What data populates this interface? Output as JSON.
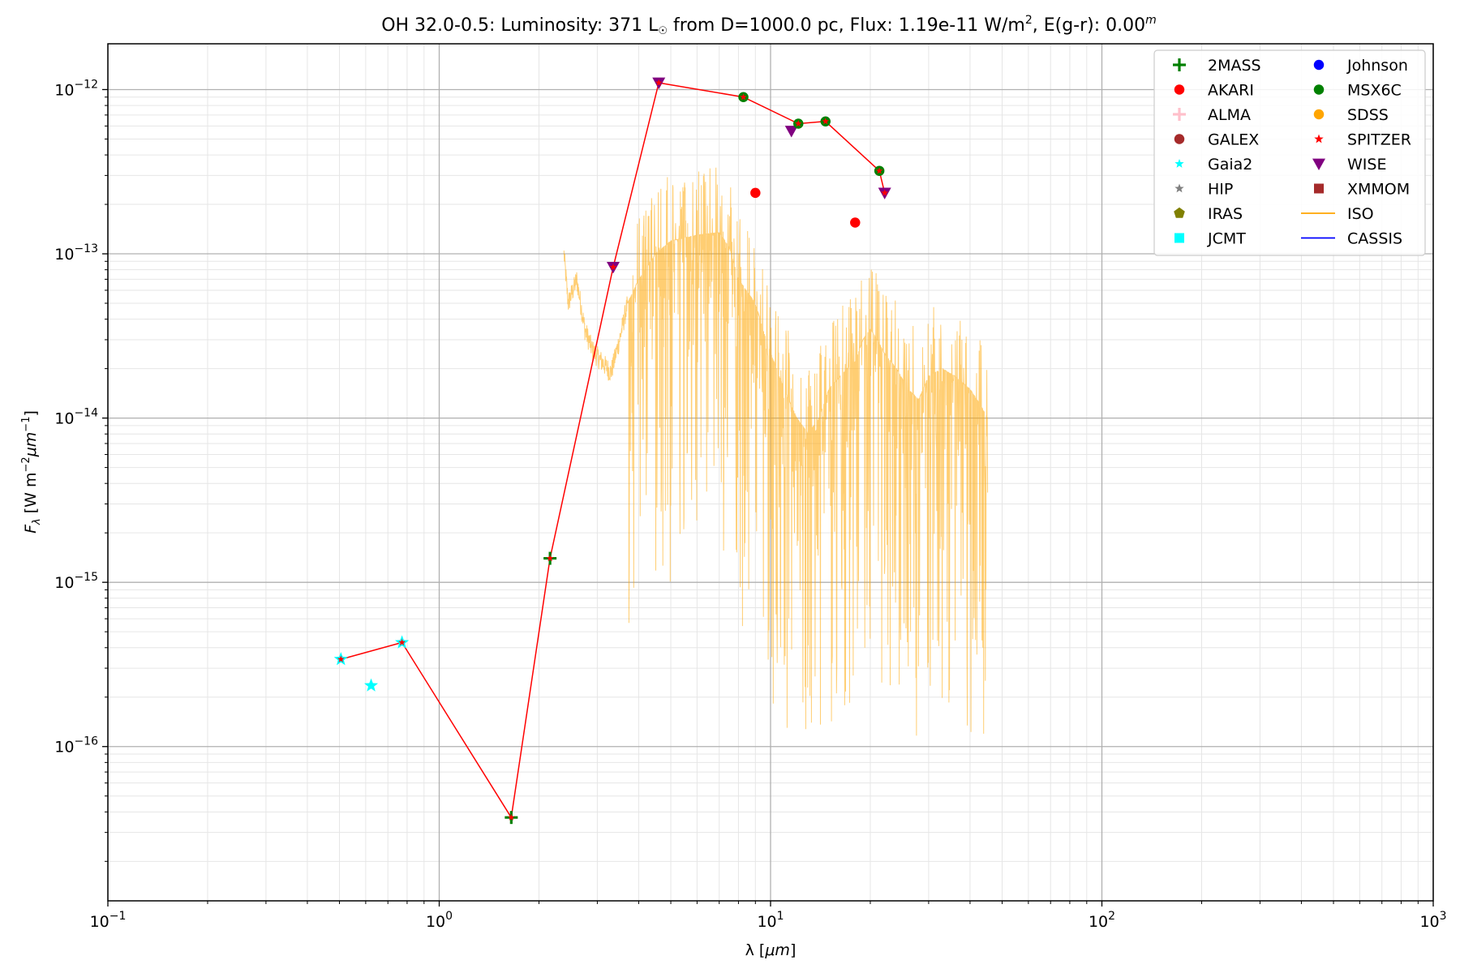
{
  "chart_data": {
    "type": "scatter",
    "title": {
      "prefix": "OH 32.0-0.5:  Luminosity: 371 L",
      "sun_symbol": "☉",
      "middle": " from D=1000.0 pc, Flux: 1.19e-11 W/m",
      "sup1": "2",
      "after_sup1": ", E(g-r): 0.00",
      "sup2": "m"
    },
    "xlabel": {
      "main": "λ [",
      "italic": "μm",
      "end": "]"
    },
    "ylabel": {
      "main": "F",
      "sub": "λ",
      "mid": " [W m",
      "sup1": "−2",
      "italic": "μm",
      "sup2": "−1",
      "end": "]"
    },
    "x_scale": "log",
    "y_scale": "log",
    "xlim": [
      0.1,
      1000
    ],
    "ylim": [
      1.15e-17,
      1.9e-12
    ],
    "x_ticks": [
      {
        "value": 0.1,
        "base": "10",
        "exp": "−1"
      },
      {
        "value": 1,
        "base": "10",
        "exp": "0"
      },
      {
        "value": 10,
        "base": "10",
        "exp": "1"
      },
      {
        "value": 100,
        "base": "10",
        "exp": "2"
      },
      {
        "value": 1000,
        "base": "10",
        "exp": "3"
      }
    ],
    "y_ticks": [
      {
        "value": 1e-16,
        "base": "10",
        "exp": "−16"
      },
      {
        "value": 1e-15,
        "base": "10",
        "exp": "−15"
      },
      {
        "value": 1e-14,
        "base": "10",
        "exp": "−14"
      },
      {
        "value": 1e-13,
        "base": "10",
        "exp": "−13"
      },
      {
        "value": 1e-12,
        "base": "10",
        "exp": "−12"
      }
    ],
    "grid": "major and minor",
    "legend_position": "top-right",
    "legend": [
      {
        "name": "2MASS",
        "marker": "plus",
        "color": "#008000"
      },
      {
        "name": "Johnson",
        "marker": "circle",
        "color": "#0000ff"
      },
      {
        "name": "AKARI",
        "marker": "circle",
        "color": "#ff0000"
      },
      {
        "name": "MSX6C",
        "marker": "circle",
        "color": "#008000"
      },
      {
        "name": "ALMA",
        "marker": "plus",
        "color": "#ffc0cb"
      },
      {
        "name": "SDSS",
        "marker": "circle",
        "color": "#ffa500"
      },
      {
        "name": "GALEX",
        "marker": "circle",
        "color": "#a52a2a"
      },
      {
        "name": "SPITZER",
        "marker": "star",
        "color": "#ff0000"
      },
      {
        "name": "Gaia2",
        "marker": "star",
        "color": "#00ffff"
      },
      {
        "name": "WISE",
        "marker": "triangle",
        "color": "#800080"
      },
      {
        "name": "HIP",
        "marker": "star",
        "color": "#808080"
      },
      {
        "name": "XMMOM",
        "marker": "square",
        "color": "#a52a2a"
      },
      {
        "name": "IRAS",
        "marker": "pentagon",
        "color": "#808000"
      },
      {
        "name": "ISO",
        "marker": "line",
        "color": "#ffa500"
      },
      {
        "name": "JCMT",
        "marker": "square",
        "color": "#00ffff"
      },
      {
        "name": "CASSIS",
        "marker": "line",
        "color": "#0000ff"
      }
    ],
    "sed_line": {
      "color": "#ff0000",
      "points": [
        [
          0.505,
          3.4e-16
        ],
        [
          0.772,
          4.3e-16
        ],
        [
          1.65,
          3.7e-17
        ],
        [
          2.16,
          1.4e-15
        ],
        [
          3.35,
          8.3e-14
        ],
        [
          4.6,
          1.1e-12
        ],
        [
          8.28,
          9e-13
        ],
        [
          12.13,
          6.2e-13
        ],
        [
          14.65,
          6.4e-13
        ],
        [
          21.3,
          3.2e-13
        ],
        [
          22.1,
          2.35e-13
        ]
      ]
    },
    "series": [
      {
        "name": "Gaia2",
        "marker": "star",
        "color": "#00ffff",
        "points": [
          [
            0.505,
            3.4e-16
          ],
          [
            0.623,
            2.35e-16
          ],
          [
            0.772,
            4.3e-16
          ]
        ]
      },
      {
        "name": "2MASS",
        "marker": "plus",
        "color": "#008000",
        "points": [
          [
            1.65,
            3.7e-17
          ],
          [
            2.16,
            1.4e-15
          ]
        ]
      },
      {
        "name": "WISE",
        "marker": "triangle",
        "color": "#800080",
        "points": [
          [
            3.35,
            8.3e-14
          ],
          [
            4.6,
            1.1e-12
          ],
          [
            11.56,
            5.6e-13
          ],
          [
            22.1,
            2.35e-13
          ]
        ]
      },
      {
        "name": "MSX6C",
        "marker": "circle",
        "color": "#008000",
        "points": [
          [
            8.28,
            9e-13
          ],
          [
            12.13,
            6.2e-13
          ],
          [
            14.65,
            6.4e-13
          ],
          [
            21.3,
            3.2e-13
          ]
        ]
      },
      {
        "name": "AKARI",
        "marker": "circle",
        "color": "#ff0000",
        "points": [
          [
            9.0,
            2.35e-13
          ],
          [
            18.0,
            1.55e-13
          ]
        ]
      }
    ],
    "iso_spectrum": {
      "name": "ISO",
      "color": "#ffa500",
      "wavelength_range": [
        2.38,
        45.2
      ],
      "anchors": [
        [
          2.38,
          1e-13
        ],
        [
          2.45,
          5e-14
        ],
        [
          2.6,
          7e-14
        ],
        [
          2.75,
          3.5e-14
        ],
        [
          2.9,
          2.6e-14
        ],
        [
          3.1,
          2.2e-14
        ],
        [
          3.3,
          1.9e-14
        ],
        [
          3.5,
          3e-14
        ],
        [
          3.7,
          5e-14
        ],
        [
          4.0,
          7e-14
        ],
        [
          4.5,
          1e-13
        ],
        [
          5.0,
          1.2e-13
        ],
        [
          6.0,
          1.3e-13
        ],
        [
          7.0,
          1.35e-13
        ],
        [
          7.5,
          1.1e-13
        ],
        [
          8.0,
          7e-14
        ],
        [
          9.0,
          5e-14
        ],
        [
          9.7,
          3e-14
        ],
        [
          10.0,
          2.5e-14
        ],
        [
          11.0,
          1.5e-14
        ],
        [
          12.0,
          1e-14
        ],
        [
          13.0,
          8e-15
        ],
        [
          14.0,
          1e-14
        ],
        [
          15.0,
          1.5e-14
        ],
        [
          17.0,
          2e-14
        ],
        [
          18.0,
          2.2e-14
        ],
        [
          19.0,
          3e-14
        ],
        [
          20.0,
          3.5e-14
        ],
        [
          21.0,
          3e-14
        ],
        [
          22.0,
          2.5e-14
        ],
        [
          24.0,
          2e-14
        ],
        [
          26.0,
          1.5e-14
        ],
        [
          28.0,
          1.3e-14
        ],
        [
          30.0,
          1.8e-14
        ],
        [
          33.0,
          2e-14
        ],
        [
          36.0,
          1.8e-14
        ],
        [
          40.0,
          1.5e-14
        ],
        [
          43.0,
          1.2e-14
        ],
        [
          45.2,
          1e-14
        ]
      ]
    }
  }
}
